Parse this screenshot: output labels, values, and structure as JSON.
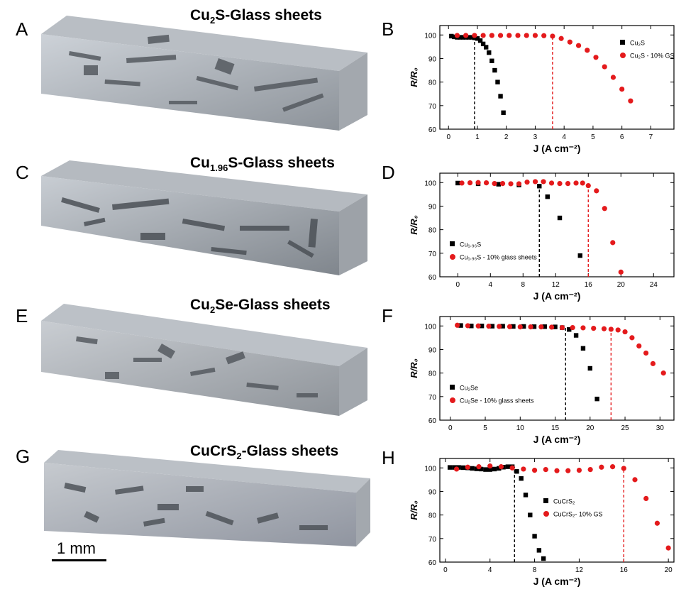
{
  "blocks": [
    {
      "letter": "A",
      "title_base": "Cu",
      "title_sub": "2",
      "title_rest": "S-Glass sheets"
    },
    {
      "letter": "C",
      "title_base": "Cu",
      "title_sub": "1.96",
      "title_rest": "S-Glass sheets"
    },
    {
      "letter": "E",
      "title_base": "Cu",
      "title_sub": "2",
      "title_rest": "Se-Glass sheets"
    },
    {
      "letter": "G",
      "title_base": "CuCrS",
      "title_sub": "2",
      "title_rest": "-Glass sheets"
    }
  ],
  "scale_bar": {
    "label": "1 mm"
  },
  "chart_data": [
    {
      "panel": "B",
      "type": "scatter",
      "xlabel": "J (A cm⁻²)",
      "ylabel": "R/R₀",
      "xlim": [
        -0.3,
        7.8
      ],
      "ylim": [
        60,
        104
      ],
      "xticks": [
        0,
        1,
        2,
        3,
        4,
        5,
        6,
        7
      ],
      "yticks": [
        60,
        70,
        80,
        90,
        100
      ],
      "legend_position": "top-right",
      "series": [
        {
          "name": "Cu₂S",
          "marker": "square",
          "color": "#000000",
          "points": [
            [
              0.1,
              99.5
            ],
            [
              0.2,
              99.2
            ],
            [
              0.3,
              99.0
            ],
            [
              0.4,
              99.0
            ],
            [
              0.5,
              99.0
            ],
            [
              0.6,
              99.0
            ],
            [
              0.7,
              99.0
            ],
            [
              0.8,
              99.0
            ],
            [
              0.9,
              98.8
            ],
            [
              1.0,
              98.5
            ],
            [
              1.1,
              97.6
            ],
            [
              1.2,
              96.2
            ],
            [
              1.3,
              94.8
            ],
            [
              1.4,
              92.5
            ],
            [
              1.5,
              89.0
            ],
            [
              1.6,
              85.0
            ],
            [
              1.7,
              80.0
            ],
            [
              1.8,
              74.0
            ],
            [
              1.9,
              67.0
            ]
          ],
          "dashed_line_x": 0.9
        },
        {
          "name": "Cu₂S - 10% GS",
          "marker": "circle",
          "color": "#e41a1c",
          "points": [
            [
              0.3,
              99.8
            ],
            [
              0.6,
              99.8
            ],
            [
              0.9,
              99.8
            ],
            [
              1.2,
              99.8
            ],
            [
              1.5,
              99.8
            ],
            [
              1.8,
              99.8
            ],
            [
              2.1,
              99.8
            ],
            [
              2.4,
              99.8
            ],
            [
              2.7,
              99.8
            ],
            [
              3.0,
              99.8
            ],
            [
              3.3,
              99.7
            ],
            [
              3.6,
              99.5
            ],
            [
              3.9,
              98.5
            ],
            [
              4.2,
              97.0
            ],
            [
              4.5,
              95.5
            ],
            [
              4.8,
              93.5
            ],
            [
              5.1,
              90.5
            ],
            [
              5.4,
              86.5
            ],
            [
              5.7,
              82.0
            ],
            [
              6.0,
              77.0
            ],
            [
              6.3,
              72.0
            ]
          ],
          "dashed_line_x": 3.6
        }
      ]
    },
    {
      "panel": "D",
      "type": "scatter",
      "xlabel": "J (A cm⁻²)",
      "ylabel": "R/R₀",
      "xlim": [
        -2.2,
        26.5
      ],
      "ylim": [
        60,
        104
      ],
      "xticks": [
        0,
        4,
        8,
        12,
        16,
        20,
        24
      ],
      "yticks": [
        60,
        70,
        80,
        90,
        100
      ],
      "legend_position": "bottom-left",
      "series": [
        {
          "name": "Cu₁.₉₆S",
          "marker": "square",
          "color": "#000000",
          "points": [
            [
              0,
              99.8
            ],
            [
              2.5,
              99.5
            ],
            [
              5,
              99.3
            ],
            [
              7.5,
              99.0
            ],
            [
              10,
              98.5
            ],
            [
              11,
              94.0
            ],
            [
              12.5,
              85.0
            ],
            [
              15,
              69.0
            ]
          ],
          "dashed_line_x": 10
        },
        {
          "name": "Cu₁.₉₆S - 10% glass sheets",
          "marker": "circle",
          "color": "#e41a1c",
          "points": [
            [
              0.5,
              99.8
            ],
            [
              1.5,
              99.9
            ],
            [
              2.5,
              100.0
            ],
            [
              3.5,
              99.9
            ],
            [
              4.5,
              99.6
            ],
            [
              5.5,
              99.6
            ],
            [
              6.5,
              99.5
            ],
            [
              7.5,
              99.5
            ],
            [
              8.5,
              100.2
            ],
            [
              9.5,
              100.4
            ],
            [
              10.5,
              100.4
            ],
            [
              11.5,
              99.8
            ],
            [
              12.5,
              99.6
            ],
            [
              13.5,
              99.6
            ],
            [
              14.5,
              99.8
            ],
            [
              15.3,
              99.8
            ],
            [
              16,
              98.7
            ],
            [
              17,
              96.5
            ],
            [
              18,
              89.0
            ],
            [
              19,
              74.5
            ],
            [
              20,
              62.0
            ]
          ],
          "dashed_line_x": 16
        }
      ]
    },
    {
      "panel": "F",
      "type": "scatter",
      "xlabel": "J (A cm⁻²)",
      "ylabel": "R/R₀",
      "xlim": [
        -1.5,
        32.0
      ],
      "ylim": [
        60,
        104
      ],
      "xticks": [
        0,
        5,
        10,
        15,
        20,
        25,
        30
      ],
      "yticks": [
        60,
        70,
        80,
        90,
        100
      ],
      "legend_position": "bottom-left",
      "series": [
        {
          "name": "Cu₂Se",
          "marker": "square",
          "color": "#000000",
          "points": [
            [
              1.5,
              100.2
            ],
            [
              3,
              100.0
            ],
            [
              4.5,
              100.0
            ],
            [
              6,
              99.9
            ],
            [
              7.5,
              99.9
            ],
            [
              9,
              99.8
            ],
            [
              10.5,
              99.8
            ],
            [
              12,
              99.7
            ],
            [
              13.5,
              99.7
            ],
            [
              15,
              99.6
            ],
            [
              16,
              99.3
            ],
            [
              17,
              98.5
            ],
            [
              18,
              96.0
            ],
            [
              19,
              90.5
            ],
            [
              20,
              82.0
            ],
            [
              21,
              69.0
            ]
          ],
          "dashed_line_x": 16.5
        },
        {
          "name": "Cu₂Se - 10%  glass sheets",
          "marker": "circle",
          "color": "#e41a1c",
          "points": [
            [
              1,
              100.3
            ],
            [
              2.5,
              100.1
            ],
            [
              4,
              100.0
            ],
            [
              5.5,
              99.9
            ],
            [
              7,
              99.8
            ],
            [
              8.5,
              99.7
            ],
            [
              10,
              99.6
            ],
            [
              11.5,
              99.6
            ],
            [
              13,
              99.6
            ],
            [
              14.5,
              99.5
            ],
            [
              16,
              99.3
            ],
            [
              17.5,
              99.3
            ],
            [
              19,
              99.2
            ],
            [
              20.5,
              99.0
            ],
            [
              22,
              98.8
            ],
            [
              23,
              98.6
            ],
            [
              24,
              98.3
            ],
            [
              25,
              97.5
            ],
            [
              26,
              95.0
            ],
            [
              27,
              91.5
            ],
            [
              28,
              88.5
            ],
            [
              29,
              84.0
            ],
            [
              30.5,
              80.0
            ]
          ],
          "dashed_line_x": 23
        }
      ]
    },
    {
      "panel": "H",
      "type": "scatter",
      "xlabel": "J (A cm⁻²)",
      "ylabel": "R/R₀",
      "xlim": [
        -0.5,
        20.5
      ],
      "ylim": [
        60,
        104
      ],
      "xticks": [
        0,
        4,
        8,
        12,
        16,
        20
      ],
      "yticks": [
        60,
        70,
        80,
        90,
        100
      ],
      "legend_position": "middle",
      "series": [
        {
          "name": "CuCrS₂",
          "marker": "square",
          "color": "#000000",
          "points": [
            [
              0.4,
              100.2
            ],
            [
              0.8,
              100.2
            ],
            [
              1.2,
              100.2
            ],
            [
              1.6,
              100.1
            ],
            [
              2,
              100.0
            ],
            [
              2.4,
              99.8
            ],
            [
              2.8,
              99.6
            ],
            [
              3.2,
              99.5
            ],
            [
              3.6,
              99.3
            ],
            [
              4,
              99.3
            ],
            [
              4.4,
              99.5
            ],
            [
              4.8,
              99.8
            ],
            [
              5.2,
              100.3
            ],
            [
              5.6,
              100.5
            ],
            [
              6,
              100.5
            ],
            [
              6.4,
              98.5
            ],
            [
              6.8,
              95.5
            ],
            [
              7.2,
              88.5
            ],
            [
              7.6,
              80.0
            ],
            [
              8,
              71.0
            ],
            [
              8.4,
              65.0
            ],
            [
              8.8,
              61.5
            ]
          ],
          "dashed_line_x": 6.2
        },
        {
          "name": "CuCrS₂- 10% GS",
          "marker": "circle",
          "color": "#e41a1c",
          "points": [
            [
              1,
              99.5
            ],
            [
              2,
              100.3
            ],
            [
              3,
              100.5
            ],
            [
              4,
              100.8
            ],
            [
              5,
              100.5
            ],
            [
              6,
              100.0
            ],
            [
              7,
              99.5
            ],
            [
              8,
              99.0
            ],
            [
              9,
              99.3
            ],
            [
              10,
              98.8
            ],
            [
              11,
              98.8
            ],
            [
              12,
              99.0
            ],
            [
              13,
              99.3
            ],
            [
              14,
              100.3
            ],
            [
              15,
              100.5
            ],
            [
              16,
              99.8
            ],
            [
              17,
              95.0
            ],
            [
              18,
              87.0
            ],
            [
              19,
              76.5
            ],
            [
              20,
              66.0
            ]
          ],
          "dashed_line_x": 16
        }
      ]
    }
  ]
}
